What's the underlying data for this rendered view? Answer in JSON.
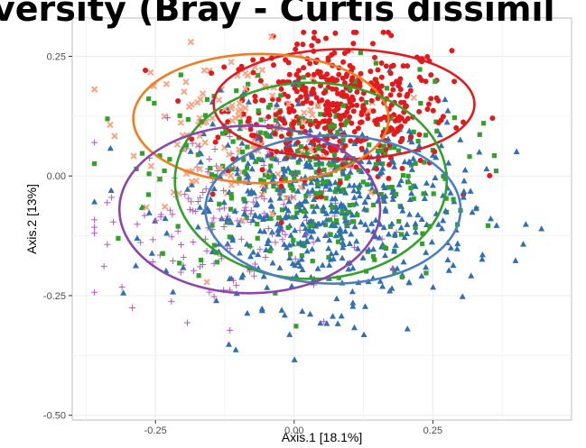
{
  "chart_data": {
    "type": "scatter",
    "title": "versity (Bray - Curtis dissimil",
    "xlabel": "Axis.1   [18.1%]",
    "ylabel": "Axis.2   [13%]",
    "xlim": [
      -0.4,
      0.5
    ],
    "ylim": [
      -0.51,
      0.33
    ],
    "x_ticks": [
      -0.25,
      0.0,
      0.25
    ],
    "x_tick_labels": [
      "-0.25",
      "0.00",
      "0.25"
    ],
    "y_ticks": [
      -0.5,
      -0.25,
      0.0,
      0.25
    ],
    "y_tick_labels": [
      "-0.50",
      "-0.25",
      "0.00",
      "0.25"
    ],
    "grid": true,
    "legend": "none",
    "series": [
      {
        "marker": "circle",
        "color": "#e31a1c",
        "center": [
          0.08,
          0.14
        ],
        "spread": [
          0.1,
          0.07
        ],
        "count": 450,
        "ellipse": {
          "center": [
            0.09,
            0.15
          ],
          "rx": 0.235,
          "ry": 0.115
        }
      },
      {
        "marker": "x",
        "color": "#f4a582",
        "center": [
          -0.1,
          0.1
        ],
        "spread": [
          0.1,
          0.08
        ],
        "count": 130,
        "ellipse": {
          "center": [
            -0.06,
            0.12
          ],
          "rx": 0.23,
          "ry": 0.135,
          "stroke": "#f07d22"
        }
      },
      {
        "marker": "square",
        "color": "#33a02c",
        "center": [
          0.03,
          0.0
        ],
        "spread": [
          0.14,
          0.11
        ],
        "count": 320,
        "ellipse": {
          "center": [
            0.03,
            -0.01
          ],
          "rx": 0.245,
          "ry": 0.205
        }
      },
      {
        "marker": "triangle",
        "color": "#2f6fb2",
        "center": [
          0.06,
          -0.07
        ],
        "spread": [
          0.13,
          0.1
        ],
        "count": 550,
        "ellipse": {
          "center": [
            0.07,
            -0.07
          ],
          "rx": 0.23,
          "ry": 0.155,
          "stroke": "#4a7fbf"
        }
      },
      {
        "marker": "plus",
        "color": "#b05bbf",
        "center": [
          -0.13,
          -0.09
        ],
        "spread": [
          0.11,
          0.1
        ],
        "count": 170,
        "ellipse": {
          "center": [
            -0.08,
            -0.07
          ],
          "rx": 0.235,
          "ry": 0.175,
          "stroke": "#8e44ad"
        }
      }
    ]
  }
}
